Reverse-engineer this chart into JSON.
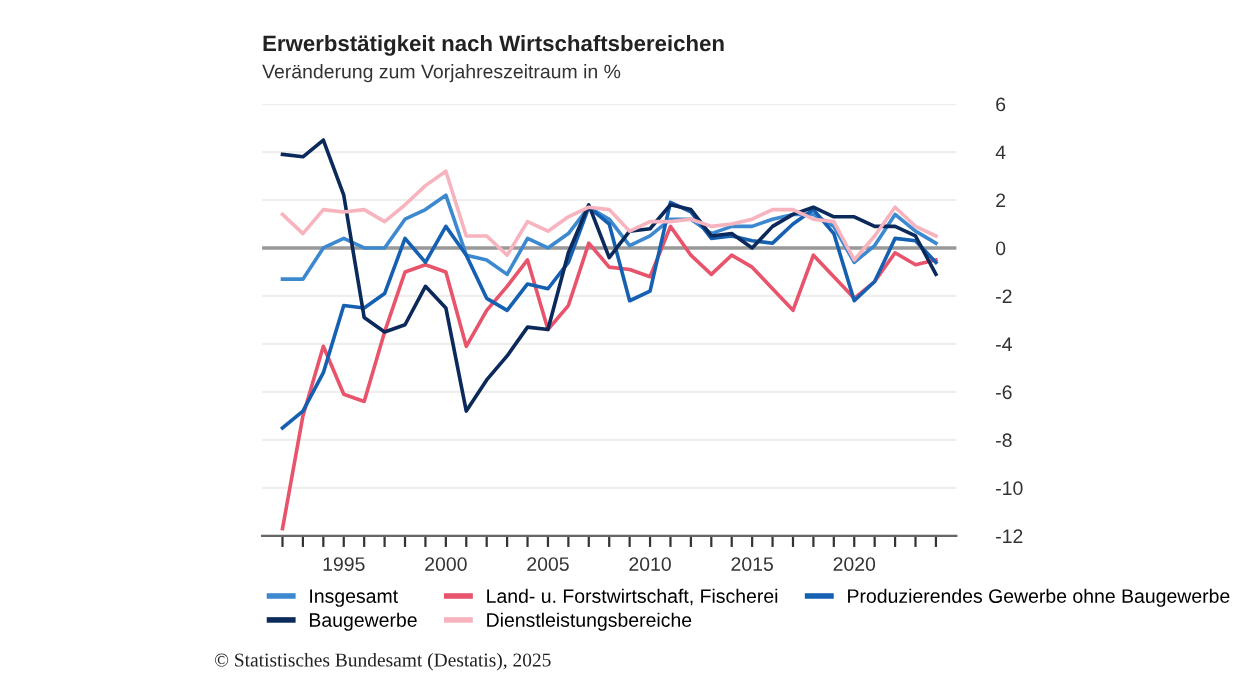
{
  "chart_data": {
    "type": "line",
    "title": "Erwerbstätigkeit nach Wirtschaftsbereichen",
    "subtitle": "Veränderung zum Vorjahreszeitraum in %",
    "x": [
      1992,
      1993,
      1994,
      1995,
      1996,
      1997,
      1998,
      1999,
      2000,
      2001,
      2002,
      2003,
      2004,
      2005,
      2006,
      2007,
      2008,
      2009,
      2010,
      2011,
      2012,
      2013,
      2014,
      2015,
      2016,
      2017,
      2018,
      2019,
      2020,
      2021,
      2022,
      2023,
      2024
    ],
    "series": [
      {
        "name": "Insgesamt",
        "color": "#3c89d0",
        "values": [
          -1.3,
          -1.3,
          0.0,
          0.4,
          0.0,
          0.0,
          1.2,
          1.6,
          2.2,
          -0.3,
          -0.5,
          -1.1,
          0.4,
          0.0,
          0.6,
          1.7,
          1.2,
          0.1,
          0.5,
          1.2,
          1.2,
          0.6,
          0.9,
          0.9,
          1.2,
          1.4,
          1.4,
          0.9,
          -0.6,
          0.1,
          1.4,
          0.7,
          0.2
        ]
      },
      {
        "name": "Land- u. Forstwirtschaft, Fischerei",
        "color": "#e8546b",
        "values": [
          -11.7,
          -7.0,
          -4.1,
          -6.1,
          -6.4,
          -3.5,
          -1.0,
          -0.7,
          -1.0,
          -4.1,
          -2.6,
          -1.6,
          -0.5,
          -3.4,
          -2.4,
          0.2,
          -0.8,
          -0.9,
          -1.2,
          0.9,
          -0.3,
          -1.1,
          -0.3,
          -0.8,
          -1.7,
          -2.6,
          -0.3,
          -1.2,
          -2.1,
          -1.4,
          -0.2,
          -0.7,
          -0.5
        ]
      },
      {
        "name": "Produzierendes Gewerbe ohne Baugewerbe",
        "color": "#1560b0",
        "values": [
          -7.5,
          -6.8,
          -5.2,
          -2.4,
          -2.5,
          -1.9,
          0.4,
          -0.6,
          0.9,
          -0.3,
          -2.1,
          -2.6,
          -1.5,
          -1.7,
          -0.6,
          1.7,
          1.0,
          -2.2,
          -1.8,
          1.9,
          1.5,
          0.4,
          0.5,
          0.3,
          0.2,
          1.0,
          1.6,
          0.6,
          -2.2,
          -1.4,
          0.4,
          0.3,
          -0.6
        ]
      },
      {
        "name": "Baugewerbe",
        "color": "#0b2a5b",
        "values": [
          3.9,
          3.8,
          4.5,
          2.2,
          -2.9,
          -3.5,
          -3.2,
          -1.6,
          -2.5,
          -6.8,
          -5.5,
          -4.5,
          -3.3,
          -3.4,
          -0.2,
          1.8,
          -0.4,
          0.7,
          0.8,
          1.8,
          1.6,
          0.5,
          0.6,
          0.0,
          0.9,
          1.4,
          1.7,
          1.3,
          1.3,
          0.9,
          0.9,
          0.5,
          -1.1
        ]
      },
      {
        "name": "Dienstleistungsbereiche",
        "color": "#f7b3be",
        "values": [
          1.4,
          0.6,
          1.6,
          1.5,
          1.6,
          1.1,
          1.8,
          2.6,
          3.2,
          0.5,
          0.5,
          -0.3,
          1.1,
          0.7,
          1.3,
          1.7,
          1.6,
          0.7,
          1.1,
          1.1,
          1.2,
          0.9,
          1.0,
          1.2,
          1.6,
          1.6,
          1.2,
          1.1,
          -0.5,
          0.5,
          1.7,
          0.9,
          0.5
        ]
      }
    ],
    "xlim": [
      1991,
      2025
    ],
    "xticks": [
      {
        "value": 1992,
        "label": null
      },
      {
        "value": 1993,
        "label": null
      },
      {
        "value": 1994,
        "label": null
      },
      1995,
      {
        "value": 1996,
        "label": null
      },
      {
        "value": 1997,
        "label": null
      },
      {
        "value": 1998,
        "label": null
      },
      {
        "value": 1999,
        "label": null
      },
      2000,
      {
        "value": 2001,
        "label": null
      },
      {
        "value": 2002,
        "label": null
      },
      {
        "value": 2003,
        "label": null
      },
      {
        "value": 2004,
        "label": null
      },
      2005,
      {
        "value": 2006,
        "label": null
      },
      {
        "value": 2007,
        "label": null
      },
      {
        "value": 2008,
        "label": null
      },
      {
        "value": 2009,
        "label": null
      },
      2010,
      {
        "value": 2011,
        "label": null
      },
      {
        "value": 2012,
        "label": null
      },
      {
        "value": 2013,
        "label": null
      },
      {
        "value": 2014,
        "label": null
      },
      2015,
      {
        "value": 2016,
        "label": null
      },
      {
        "value": 2017,
        "label": null
      },
      {
        "value": 2018,
        "label": null
      },
      {
        "value": 2019,
        "label": null
      },
      2020,
      {
        "value": 2021,
        "label": null
      },
      {
        "value": 2022,
        "label": null
      },
      {
        "value": 2023,
        "label": null
      },
      {
        "value": 2024,
        "label": null
      }
    ],
    "ylim": [
      -12,
      6
    ],
    "yticks": [
      -12,
      -10,
      -8,
      -6,
      -4,
      -2,
      0,
      2,
      4,
      6
    ],
    "grid": "y",
    "legend": "bottom",
    "marker": "none",
    "line_style": "solid",
    "ref_lines": [
      {
        "axis": "y",
        "value": 0,
        "color": "#999999"
      }
    ],
    "annotations": [
      "© Statistisches Bundesamt (Destatis), 2025"
    ]
  }
}
